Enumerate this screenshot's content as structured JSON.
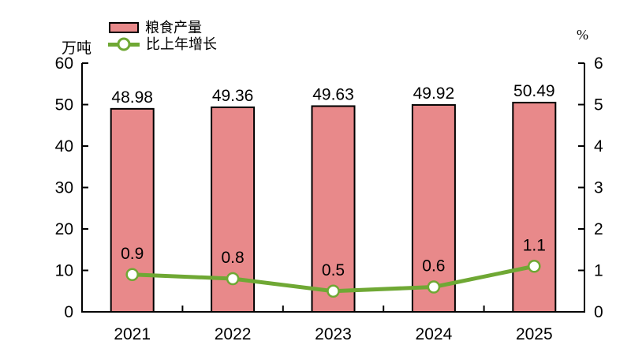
{
  "chart_data": {
    "type": "bar",
    "subtype": "bar-and-line-combo",
    "title": "",
    "categories": [
      "2021",
      "2022",
      "2023",
      "2024",
      "2025"
    ],
    "series": [
      {
        "name": "粮食产量",
        "type": "bar",
        "axis": "left",
        "values": [
          48.98,
          49.36,
          49.63,
          49.92,
          50.49
        ],
        "labels": [
          "48.98",
          "49.36",
          "49.63",
          "49.92",
          "50.49"
        ],
        "color": "#E8898A",
        "border_color": "#000000"
      },
      {
        "name": "比上年增长",
        "type": "line",
        "axis": "right",
        "values": [
          0.9,
          0.8,
          0.5,
          0.6,
          1.1
        ],
        "labels": [
          "0.9",
          "0.8",
          "0.5",
          "0.6",
          "1.1"
        ],
        "color": "#6FA834",
        "marker_fill": "#FFFFFF"
      }
    ],
    "left_axis": {
      "label": "万吨",
      "min": 0,
      "max": 60,
      "ticks": [
        0,
        10,
        20,
        30,
        40,
        50,
        60
      ]
    },
    "right_axis": {
      "label": "%",
      "min": 0,
      "max": 6,
      "ticks": [
        0,
        1,
        2,
        3,
        4,
        5,
        6
      ]
    },
    "grid": false,
    "legend_position": "top-left",
    "axis_color": "#000000",
    "text_color": "#000000"
  }
}
